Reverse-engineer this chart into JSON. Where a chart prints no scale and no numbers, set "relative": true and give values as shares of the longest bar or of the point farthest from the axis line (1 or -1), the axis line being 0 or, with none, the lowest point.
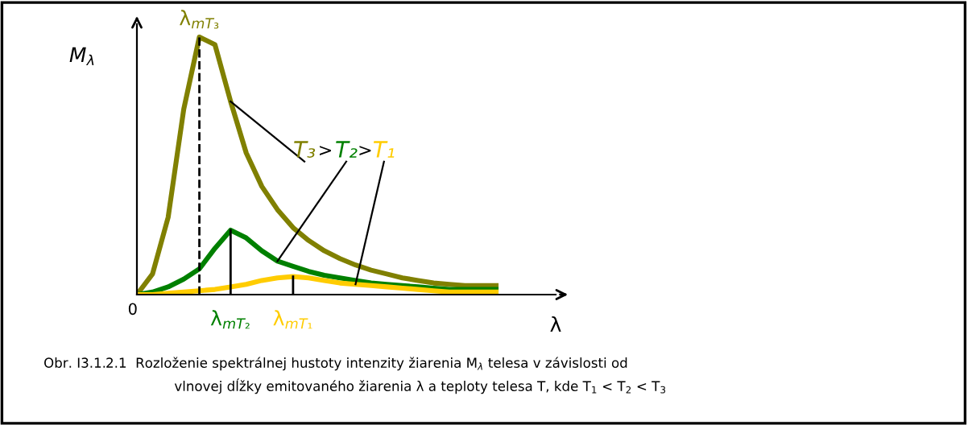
{
  "chart_data": {
    "type": "line",
    "relative": true,
    "ylabel": "M$_{λ}$",
    "xlabel": "λ",
    "categories": [
      null,
      null,
      null,
      null,
      null,
      null,
      null,
      null,
      null,
      null,
      null,
      null,
      null,
      null,
      null,
      null,
      null,
      null,
      null,
      null,
      null,
      null,
      null,
      null
    ],
    "series": [
      {
        "name": "T₃",
        "color": "#808000",
        "values": [
          0,
          0.08,
          0.3,
          0.72,
          1.0,
          0.97,
          0.75,
          0.55,
          0.42,
          0.33,
          0.26,
          0.21,
          0.17,
          0.14,
          0.115,
          0.095,
          0.08,
          0.065,
          0.055,
          0.045,
          0.04,
          0.035,
          0.035,
          0.035
        ]
      },
      {
        "name": "T₂",
        "color": "#008000",
        "values": [
          0,
          0.01,
          0.03,
          0.06,
          0.1,
          0.18,
          0.25,
          0.22,
          0.17,
          0.13,
          0.11,
          0.09,
          0.075,
          0.065,
          0.055,
          0.045,
          0.04,
          0.035,
          0.03,
          0.025,
          0.02,
          0.02,
          0.02,
          0.02
        ]
      },
      {
        "name": "T₁",
        "color": "#ffcc00",
        "values": [
          0,
          0,
          0.005,
          0.01,
          0.015,
          0.02,
          0.03,
          0.04,
          0.055,
          0.065,
          0.07,
          0.065,
          0.055,
          0.045,
          0.04,
          0.035,
          0.03,
          0.025,
          0.02,
          0.015,
          0.01,
          0.01,
          0.01,
          0.01
        ]
      }
    ],
    "annotations": [
      "0",
      ">",
      ">",
      "λ$_{mT₃}$",
      "λ$_{mT₂}$",
      "λ$_{mT₁}$",
      "Obr. I3.1.2.1  Rozloženie spektrálnej hustoty intenzity žiarenia M$_{λ}$ telesa v závislosti od",
      "vlnovej dĺžky emitovaného žiarenia λ a teploty telesa T, kde T$_{1}$ < T$_{2}$ < T$_{3}$"
    ],
    "line_style": "solid",
    "marker": "none",
    "grid": false,
    "legend": false
  }
}
